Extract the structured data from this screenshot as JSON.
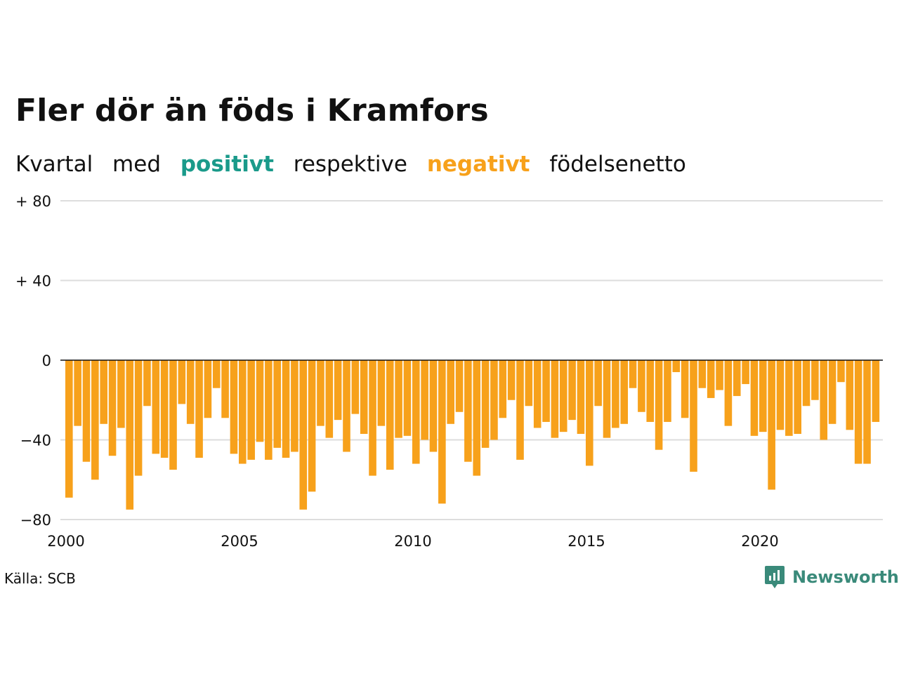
{
  "title": "Fler dör än föds i Kramfors",
  "subtitle": {
    "prefix": "Kvartal",
    "mid1": "med",
    "positive_word": "positivt",
    "mid2": "respektive",
    "negative_word": "negativt",
    "suffix": "födelsenetto"
  },
  "colors": {
    "positive": "#1a9a8a",
    "negative": "#f7a11b",
    "grid": "#dddddd",
    "zero_line": "#111111",
    "brand": "#3a8a7a"
  },
  "source": "Källa: SCB",
  "brand": {
    "name": "Newsworthy",
    "icon": "newsworthy-logo-icon"
  },
  "chart_data": {
    "type": "bar",
    "x_start": "2000 Q1",
    "xlabel": "",
    "ylabel": "",
    "ylim": [
      -80,
      80
    ],
    "y_ticks": [
      80,
      40,
      0,
      -40,
      -80
    ],
    "y_tick_labels": [
      "+ 80",
      "+ 40",
      "0",
      "−40",
      "−80"
    ],
    "x_ticks": [
      "2000",
      "2005",
      "2010",
      "2015",
      "2020"
    ],
    "grid": true,
    "values": [
      -69,
      -33,
      -51,
      -60,
      -32,
      -48,
      -34,
      -75,
      -58,
      -23,
      -47,
      -49,
      -55,
      -22,
      -32,
      -49,
      -29,
      -14,
      -29,
      -47,
      -52,
      -50,
      -41,
      -50,
      -44,
      -49,
      -46,
      -75,
      -66,
      -33,
      -39,
      -30,
      -46,
      -27,
      -37,
      -58,
      -33,
      -55,
      -39,
      -38,
      -52,
      -40,
      -46,
      -72,
      -32,
      -26,
      -51,
      -58,
      -44,
      -40,
      -29,
      -20,
      -50,
      -23,
      -34,
      -31,
      -39,
      -36,
      -30,
      -37,
      -53,
      -23,
      -39,
      -34,
      -32,
      -14,
      -26,
      -31,
      -45,
      -31,
      -6,
      -29,
      -56,
      -14,
      -19,
      -15,
      -33,
      -18,
      -12,
      -38,
      -36,
      -65,
      -35,
      -38,
      -37,
      -23,
      -20,
      -40,
      -32,
      -11,
      -35,
      -52,
      -52,
      -31
    ]
  }
}
